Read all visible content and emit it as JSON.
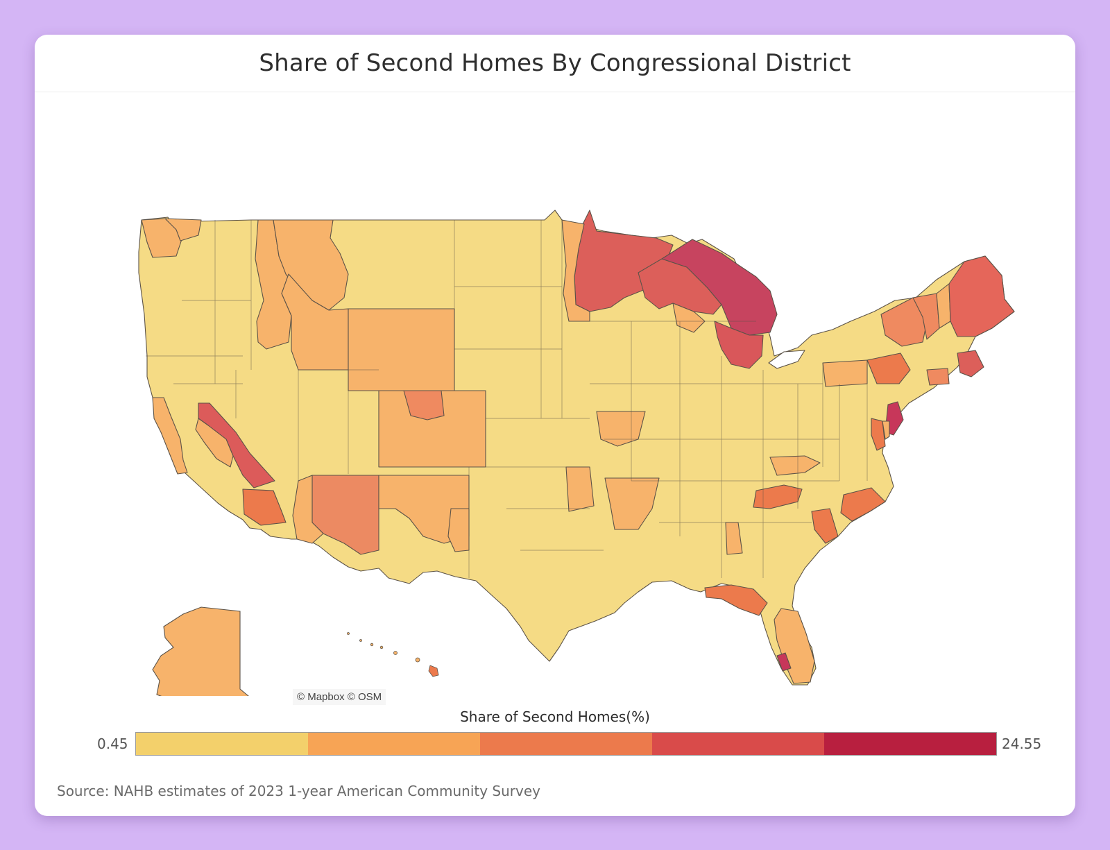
{
  "title": "Share of Second Homes By Congressional District",
  "attribution": "© Mapbox © OSM",
  "legend": {
    "title": "Share of Second Homes(%)",
    "min": "0.45",
    "max": "24.55",
    "colors": [
      "#f3d06b",
      "#f7a455",
      "#ec7a4c",
      "#d94b4a",
      "#b81f3f"
    ]
  },
  "source": "Source: NAHB estimates of 2023 1-year American Community Survey",
  "colors": {
    "background": "#d4b5f5",
    "card": "#ffffff",
    "border": "#5c5348"
  }
}
